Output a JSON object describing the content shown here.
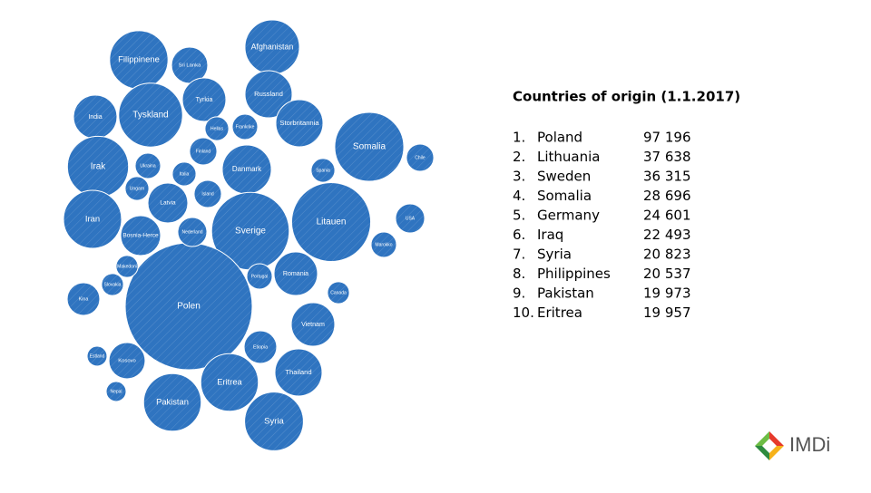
{
  "chart_data": {
    "type": "packed-bubble",
    "color": "#2f74c0",
    "categories": [
      "Filippinene",
      "Sri Lanka",
      "Afghanistan",
      "India",
      "Tyskland",
      "Tyrkia",
      "Russland",
      "Storbritannia",
      "Somalia",
      "Irak",
      "Danmark",
      "Iran",
      "Latvia",
      "Bosnia-Herce",
      "Sverige",
      "Litauen",
      "Polen",
      "Romania",
      "Vietnam",
      "Thailand",
      "Eritrea",
      "Pakistan",
      "Syria",
      "Kosovo",
      "Etiopia",
      "Island",
      "Finland",
      "Ungarn",
      "Ukraina",
      "Italia",
      "Nederland",
      "Kina",
      "Chile",
      "USA",
      "Nepal",
      "Frankrike",
      "Portugal",
      "Spania",
      "Canada",
      "Marokko",
      "Makedoni",
      "Slovakia",
      "Hellas",
      "Estland"
    ],
    "values": [
      20537,
      7900,
      17900,
      11400,
      24601,
      11400,
      13400,
      13400,
      28696,
      22493,
      14500,
      20300,
      9600,
      9600,
      36315,
      37638,
      97196,
      11400,
      11400,
      13400,
      19957,
      19973,
      20823,
      7900,
      6400,
      4500,
      4500,
      3400,
      3900,
      3400,
      5100,
      6400,
      4500,
      5100,
      2400,
      3900,
      3900,
      3400,
      2900,
      3900,
      2900,
      2900,
      3400,
      2400
    ]
  },
  "list": {
    "title": "Countries of origin (1.1.2017)",
    "items": [
      {
        "rank": "1.",
        "name": "Poland",
        "value": "97 196"
      },
      {
        "rank": "2.",
        "name": "Lithuania",
        "value": "37 638"
      },
      {
        "rank": "3.",
        "name": "Sweden",
        "value": "36 315"
      },
      {
        "rank": "4.",
        "name": "Somalia",
        "value": "28 696"
      },
      {
        "rank": "5.",
        "name": "Germany",
        "value": "24 601"
      },
      {
        "rank": "6.",
        "name": "Iraq",
        "value": "22 493"
      },
      {
        "rank": "7.",
        "name": "Syria",
        "value": "20 823"
      },
      {
        "rank": "8.",
        "name": "Philippines",
        "value": "20 537"
      },
      {
        "rank": "9.",
        "name": "Pakistan",
        "value": "19 973"
      },
      {
        "rank": "10.",
        "name": "Eritrea",
        "value": "19 957"
      }
    ]
  },
  "logo": "IMDi"
}
